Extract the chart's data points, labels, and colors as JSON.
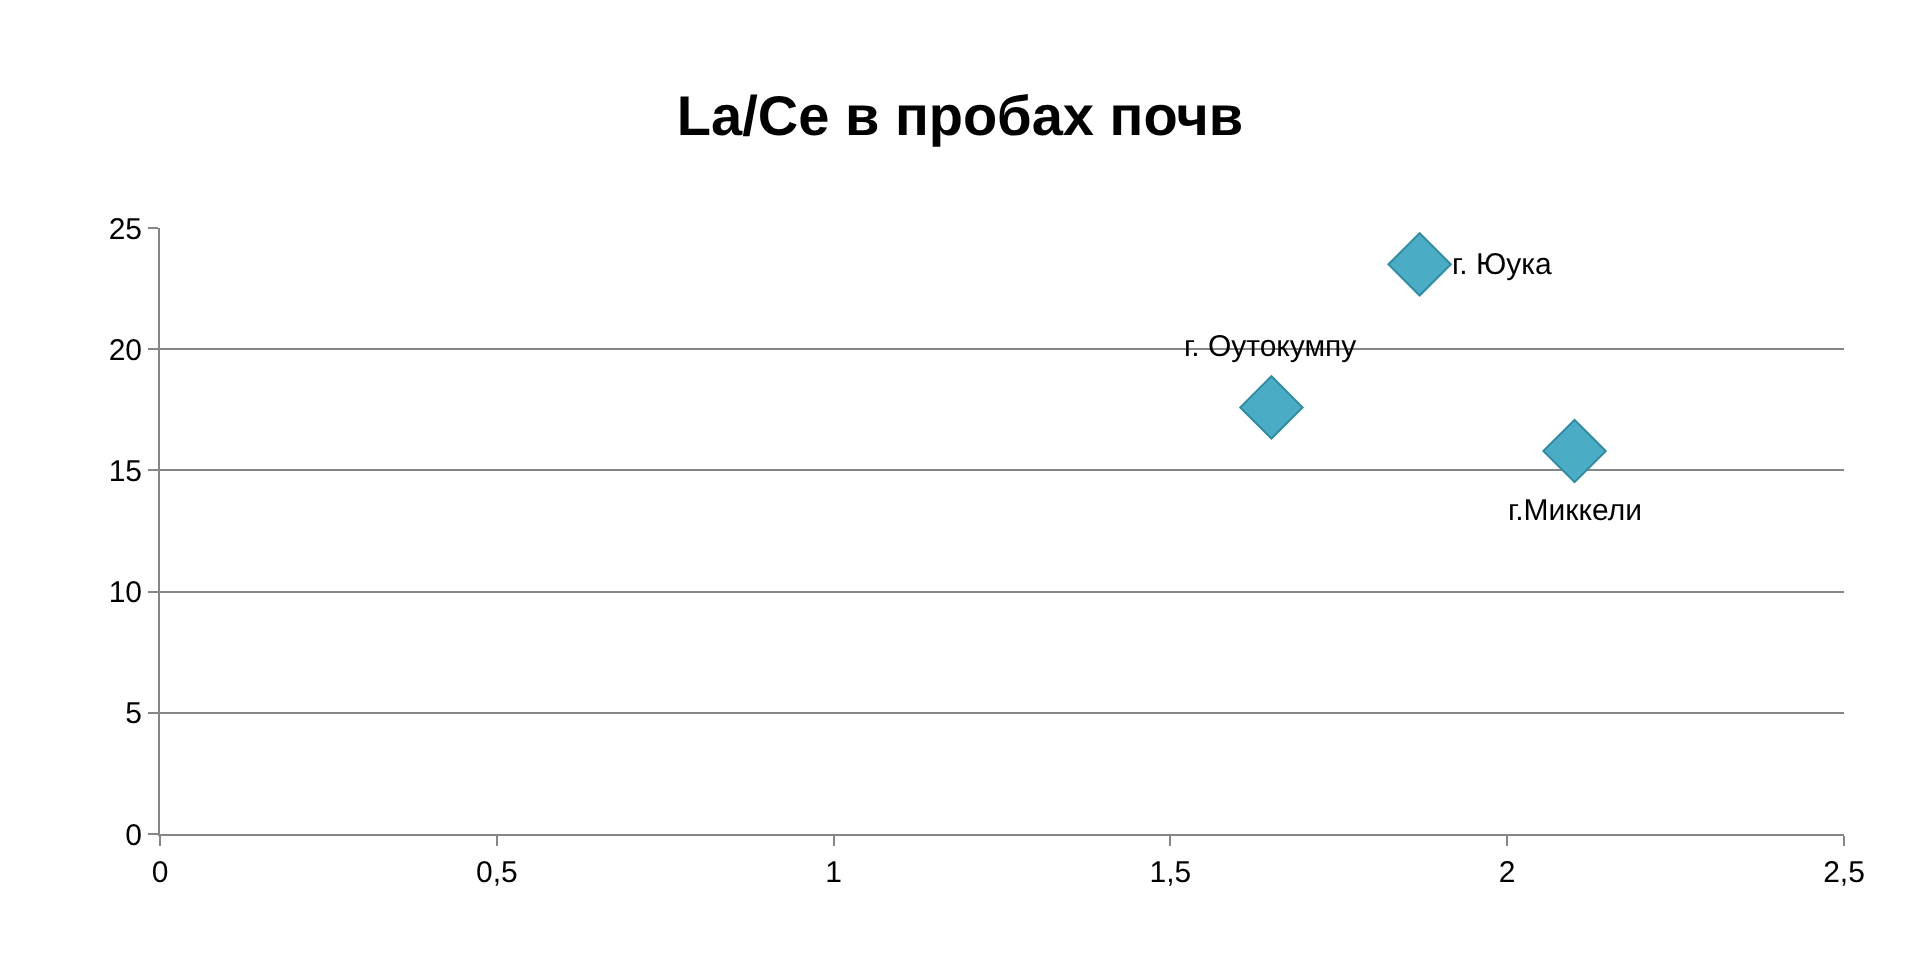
{
  "chart_data": {
    "type": "scatter",
    "title": "La/Ce в пробах почв",
    "x": [
      1.65,
      1.87,
      2.1
    ],
    "series": [
      {
        "color": "#4bacc6",
        "values": [
          17.6,
          23.5,
          15.8
        ]
      }
    ],
    "marker": "diamond",
    "grid": "y",
    "legend": false,
    "xlim": [
      0,
      2.5
    ],
    "xticks": [
      0,
      {
        "value": 0.5,
        "label": "0,5"
      },
      1,
      {
        "value": 1.5,
        "label": "1,5"
      },
      2,
      {
        "value": 2.5,
        "label": "2,5"
      }
    ],
    "ylim": [
      0,
      25
    ],
    "yticks": [
      0,
      5,
      10,
      15,
      20,
      25
    ],
    "annotations": [
      {
        "text": "г. Оутокумпу",
        "x": 1.65,
        "y": 17.6
      },
      {
        "text": "г. Юука",
        "x": 1.87,
        "y": 23.5
      },
      {
        "text": "г.Миккели",
        "x": 2.1,
        "y": 15.8
      }
    ]
  }
}
